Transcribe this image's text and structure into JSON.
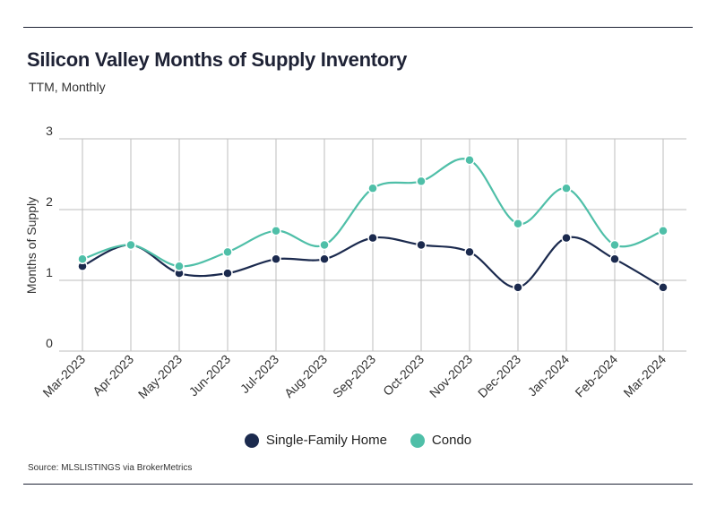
{
  "header": {
    "title": "Silicon Valley Months of Supply Inventory",
    "subtitle": "TTM, Monthly"
  },
  "footer": {
    "source": "Source:  MLSLISTINGS via BrokerMetrics"
  },
  "chart_data": {
    "type": "line",
    "title": "Silicon Valley Months of Supply Inventory",
    "subtitle": "TTM, Monthly",
    "xlabel": "",
    "ylabel": "Months of Supply",
    "ylim": [
      0,
      3
    ],
    "yticks": [
      0,
      1,
      2,
      3
    ],
    "grid": true,
    "legend_position": "bottom",
    "categories": [
      "Mar-2023",
      "Apr-2023",
      "May-2023",
      "Jun-2023",
      "Jul-2023",
      "Aug-2023",
      "Sep-2023",
      "Oct-2023",
      "Nov-2023",
      "Dec-2023",
      "Jan-2024",
      "Feb-2024",
      "Mar-2024"
    ],
    "series": [
      {
        "name": "Single-Family Home",
        "color": "#1b2a4e",
        "values": [
          1.2,
          1.5,
          1.1,
          1.1,
          1.3,
          1.3,
          1.6,
          1.5,
          1.4,
          0.9,
          1.6,
          1.3,
          0.9
        ]
      },
      {
        "name": "Condo",
        "color": "#4fbfa8",
        "values": [
          1.3,
          1.5,
          1.2,
          1.4,
          1.7,
          1.5,
          2.3,
          2.4,
          2.7,
          1.8,
          2.3,
          1.5,
          1.7
        ]
      }
    ]
  }
}
